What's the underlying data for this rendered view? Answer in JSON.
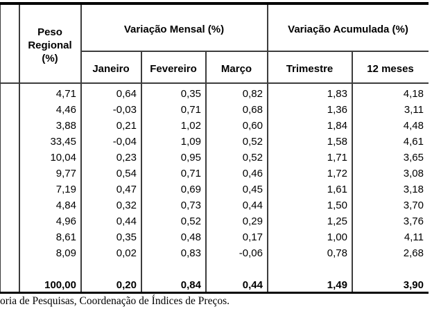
{
  "table": {
    "header": {
      "peso_regional": "Peso\nRegional\n(%)",
      "variacao_mensal": "Variação Mensal (%)",
      "variacao_acumulada": "Variação Acumulada (%)",
      "sub": {
        "janeiro": "Janeiro",
        "fevereiro": "Fevereiro",
        "marco": "Março",
        "trimestre": "Trimestre",
        "doze_meses": "12 meses"
      }
    },
    "rows": [
      [
        "4,71",
        "0,64",
        "0,35",
        "0,82",
        "1,83",
        "4,18"
      ],
      [
        "4,46",
        "-0,03",
        "0,71",
        "0,68",
        "1,36",
        "3,11"
      ],
      [
        "3,88",
        "0,21",
        "1,02",
        "0,60",
        "1,84",
        "4,48"
      ],
      [
        "33,45",
        "-0,04",
        "1,09",
        "0,52",
        "1,58",
        "4,61"
      ],
      [
        "10,04",
        "0,23",
        "0,95",
        "0,52",
        "1,71",
        "3,65"
      ],
      [
        "9,77",
        "0,54",
        "0,71",
        "0,46",
        "1,72",
        "3,08"
      ],
      [
        "7,19",
        "0,47",
        "0,69",
        "0,45",
        "1,61",
        "3,18"
      ],
      [
        "4,84",
        "0,32",
        "0,73",
        "0,44",
        "1,50",
        "3,70"
      ],
      [
        "4,96",
        "0,44",
        "0,52",
        "0,29",
        "1,25",
        "3,76"
      ],
      [
        "8,61",
        "0,35",
        "0,48",
        "0,17",
        "1,00",
        "4,11"
      ],
      [
        "8,09",
        "0,02",
        "0,83",
        "-0,06",
        "0,78",
        "2,68"
      ]
    ],
    "total_row": [
      "100,00",
      "0,20",
      "0,84",
      "0,44",
      "1,49",
      "3,90"
    ]
  },
  "footer": {
    "source_text": "oria de Pesquisas, Coordenação de Índices de Preços."
  }
}
